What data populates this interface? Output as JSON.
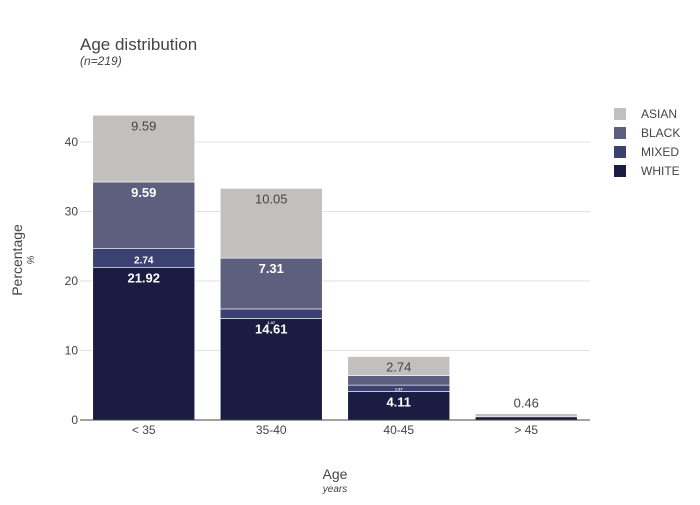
{
  "chart_data": {
    "type": "bar",
    "stacked": true,
    "title": "Age distribution",
    "subtitle": "(n=219)",
    "xlabel": "Age",
    "xlabel_unit": "years",
    "ylabel": "Percentage",
    "ylabel_unit": "%",
    "categories": [
      "< 35",
      "35-40",
      "40-45",
      "> 45"
    ],
    "ylim": [
      0,
      44
    ],
    "yticks": [
      0,
      10,
      20,
      30,
      40
    ],
    "grid": true,
    "legend_position": "top-right",
    "series": [
      {
        "name": "WHITE",
        "color": "#1b1c41",
        "values": [
          21.92,
          14.61,
          4.11,
          0.46
        ],
        "labels": [
          "21.92",
          "14.61",
          "4.11",
          ""
        ],
        "label_color": "#ffffff"
      },
      {
        "name": "MIXED",
        "color": "#3b4272",
        "values": [
          2.74,
          1.37,
          0.91,
          0.0
        ],
        "labels": [
          "2.74",
          "1.37",
          "",
          ""
        ],
        "label_color": "#ffffff"
      },
      {
        "name": "BLACK",
        "color": "#5c607e",
        "values": [
          9.59,
          7.31,
          1.37,
          0.0
        ],
        "labels": [
          "9.59",
          "7.31",
          "1.37",
          ""
        ],
        "label_color": "#ffffff"
      },
      {
        "name": "ASIAN",
        "color": "#c2c0bf",
        "values": [
          9.59,
          10.05,
          2.74,
          0.46
        ],
        "labels": [
          "9.59",
          "10.05",
          "2.74",
          "0.46"
        ],
        "label_color": "#444444"
      }
    ],
    "legend_order": [
      "ASIAN",
      "BLACK",
      "MIXED",
      "WHITE"
    ]
  }
}
